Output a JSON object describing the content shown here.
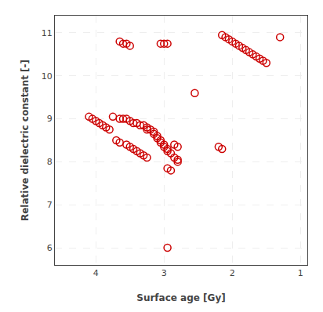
{
  "chart_data": {
    "type": "scatter",
    "x": [
      3.55,
      3.5,
      3.05,
      3.0,
      2.95,
      3.65,
      3.6,
      3.75,
      3.65,
      3.6,
      3.55,
      3.5,
      3.45,
      3.4,
      3.35,
      3.3,
      3.25,
      3.25,
      3.2,
      3.15,
      3.15,
      3.1,
      3.1,
      3.05,
      3.05,
      3.0,
      3.0,
      2.95,
      2.95,
      2.9,
      2.85,
      2.8,
      2.8,
      4.1,
      4.05,
      4.0,
      3.95,
      3.9,
      3.85,
      3.8,
      3.7,
      3.65,
      3.55,
      3.5,
      3.45,
      3.4,
      3.35,
      3.3,
      3.25,
      2.85,
      2.8,
      2.95,
      2.9,
      2.15,
      2.1,
      2.05,
      2.0,
      1.95,
      1.9,
      1.85,
      1.8,
      1.75,
      1.7,
      1.65,
      1.6,
      1.55,
      1.5,
      1.3,
      2.2,
      2.15,
      2.95,
      2.55
    ],
    "values": [
      10.75,
      10.7,
      10.75,
      10.75,
      10.75,
      10.8,
      10.75,
      9.05,
      9.0,
      9.0,
      9.0,
      8.95,
      8.9,
      8.9,
      8.85,
      8.85,
      8.8,
      8.75,
      8.75,
      8.7,
      8.65,
      8.6,
      8.55,
      8.5,
      8.45,
      8.4,
      8.35,
      8.3,
      8.25,
      8.2,
      8.1,
      8.05,
      8.0,
      9.05,
      9.0,
      8.95,
      8.9,
      8.85,
      8.8,
      8.75,
      8.5,
      8.45,
      8.4,
      8.35,
      8.3,
      8.25,
      8.2,
      8.15,
      8.1,
      8.4,
      8.35,
      7.85,
      7.8,
      10.95,
      10.9,
      10.85,
      10.8,
      10.75,
      10.7,
      10.65,
      10.6,
      10.55,
      10.5,
      10.45,
      10.4,
      10.35,
      10.3,
      10.9,
      8.35,
      8.3,
      6.0,
      9.6
    ],
    "xlabel": "Surface age [Gy]",
    "ylabel": "Relative dielectric constant [-]",
    "xlim": [
      4.6,
      0.9
    ],
    "ylim": [
      5.6,
      11.4
    ],
    "xticks": [
      4,
      3,
      2,
      1
    ],
    "yticks": [
      6,
      7,
      8,
      9,
      10,
      11
    ],
    "color": "#cc0000",
    "marker": "circle-open",
    "grid": true
  }
}
